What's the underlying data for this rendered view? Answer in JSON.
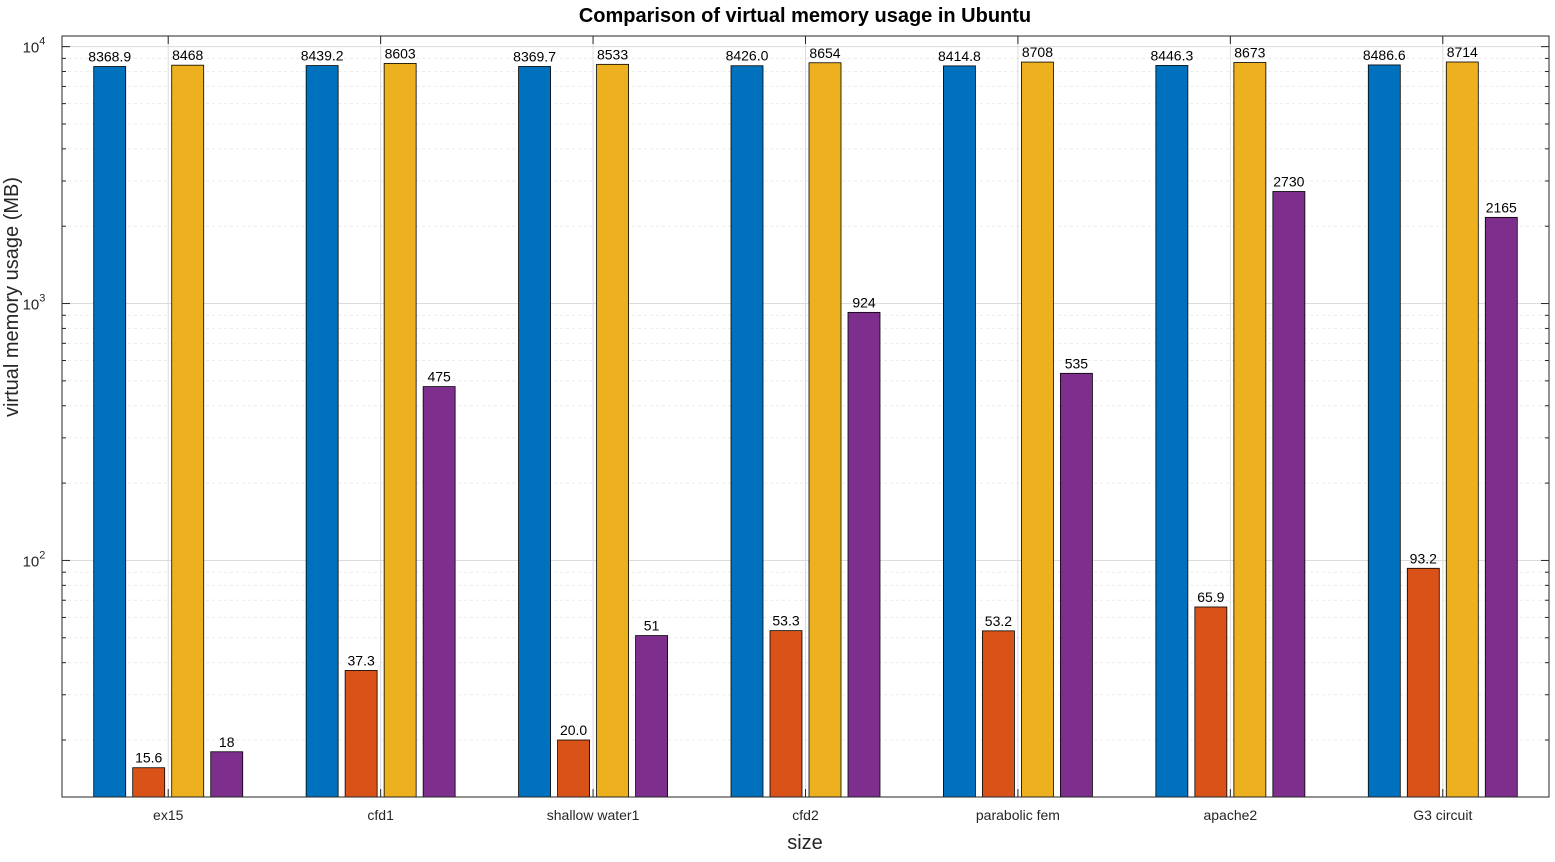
{
  "chart_data": {
    "type": "bar",
    "title": "Comparison of virtual memory usage in Ubuntu",
    "xlabel": "size",
    "ylabel": "virtual memory usage (MB)",
    "yscale": "log",
    "ylim": [
      12,
      11000
    ],
    "ytick_labels": [
      {
        "value": 100,
        "base": "10",
        "exp": "2"
      },
      {
        "value": 1000,
        "base": "10",
        "exp": "3"
      },
      {
        "value": 10000,
        "base": "10",
        "exp": "4"
      }
    ],
    "grid": true,
    "categories": [
      "ex15",
      "cfd1",
      "shallow water1",
      "cfd2",
      "parabolic fem",
      "apache2",
      "G3 circuit"
    ],
    "series": [
      {
        "color": "#0072BD",
        "values": [
          8368.9,
          8439.2,
          8369.7,
          8426.0,
          8414.8,
          8446.3,
          8486.6
        ],
        "labels": [
          "8368.9",
          "8439.2",
          "8369.7",
          "8426.0",
          "8414.8",
          "8446.3",
          "8486.6"
        ]
      },
      {
        "color": "#D95319",
        "values": [
          15.6,
          37.3,
          20.0,
          53.3,
          53.2,
          65.9,
          93.2
        ],
        "labels": [
          "15.6",
          "37.3",
          "20.0",
          "53.3",
          "53.2",
          "65.9",
          "93.2"
        ]
      },
      {
        "color": "#EDB120",
        "values": [
          8468,
          8603,
          8533,
          8654,
          8708,
          8673,
          8714
        ],
        "labels": [
          "8468",
          "8603",
          "8533",
          "8654",
          "8708",
          "8673",
          "8714"
        ]
      },
      {
        "color": "#7E2F8E",
        "values": [
          18,
          475,
          51,
          924,
          535,
          2730,
          2165
        ],
        "labels": [
          "18",
          "475",
          "51",
          "924",
          "535",
          "2730",
          "2165"
        ]
      }
    ]
  }
}
